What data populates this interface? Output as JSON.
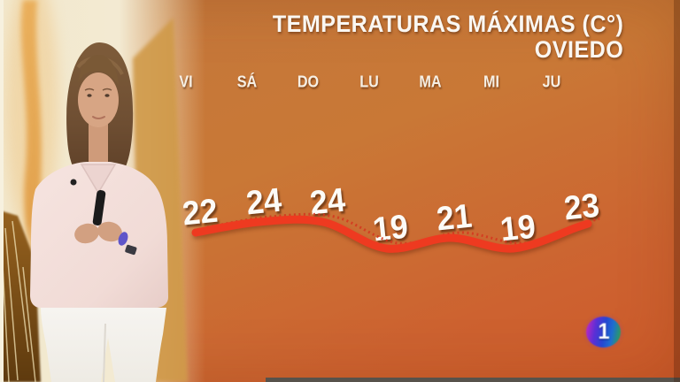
{
  "broadcast": {
    "channel_logo": "1"
  },
  "chart_data": {
    "type": "line",
    "title": "TEMPERATURAS MÁXIMAS (C°)",
    "subtitle": "OVIEDO",
    "categories": [
      "VI",
      "SÁ",
      "DO",
      "LU",
      "MA",
      "MI",
      "JU"
    ],
    "values": [
      22,
      24,
      24,
      19,
      21,
      19,
      23
    ],
    "unit": "C°",
    "line_color": "#ee3a20",
    "dotted_line_color": "#d5351f",
    "label_color": "#ffffff",
    "grid": false,
    "legend": false,
    "ylim": [
      17,
      26
    ]
  },
  "colors": {
    "background_orange": "#c97836",
    "background_cream": "#f2e8cd",
    "bottom_bar": "#57524b"
  }
}
